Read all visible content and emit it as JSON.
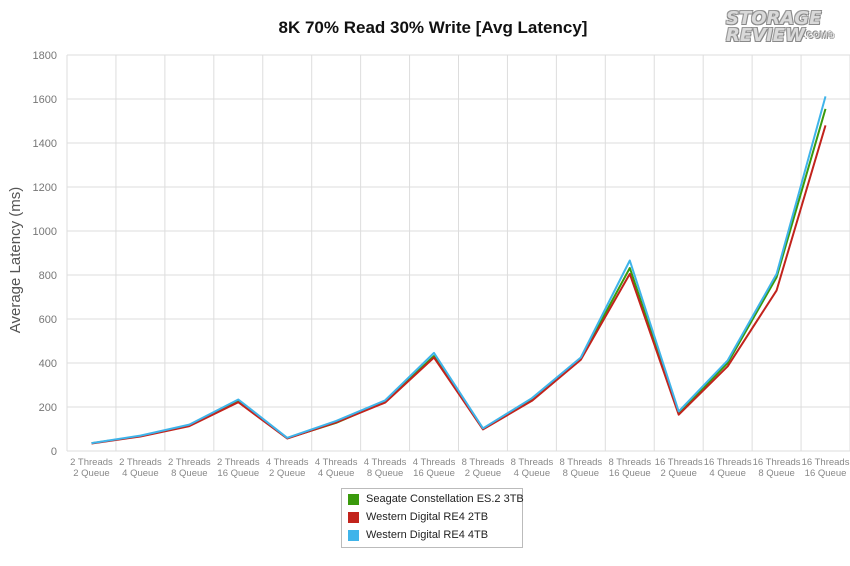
{
  "chart_data": {
    "type": "line",
    "title": "8K 70% Read 30% Write [Avg Latency]",
    "ylabel": "Average Latency (ms)",
    "xlabel": "",
    "ylim": [
      0,
      1800
    ],
    "yticks": [
      0,
      200,
      400,
      600,
      800,
      1000,
      1200,
      1400,
      1600,
      1800
    ],
    "grid": true,
    "legend_position": "bottom",
    "categories": [
      [
        "2 Threads",
        "2 Queue"
      ],
      [
        "2 Threads",
        "4 Queue"
      ],
      [
        "2 Threads",
        "8 Queue"
      ],
      [
        "2 Threads",
        "16 Queue"
      ],
      [
        "4 Threads",
        "2 Queue"
      ],
      [
        "4 Threads",
        "4 Queue"
      ],
      [
        "4 Threads",
        "8 Queue"
      ],
      [
        "4 Threads",
        "16 Queue"
      ],
      [
        "8 Threads",
        "2 Queue"
      ],
      [
        "8 Threads",
        "4 Queue"
      ],
      [
        "8 Threads",
        "8 Queue"
      ],
      [
        "8 Threads",
        "16 Queue"
      ],
      [
        "16 Threads",
        "2 Queue"
      ],
      [
        "16 Threads",
        "4 Queue"
      ],
      [
        "16 Threads",
        "8 Queue"
      ],
      [
        "16 Threads",
        "16 Queue"
      ]
    ],
    "series": [
      {
        "name": "Seagate Constellation ES.2 3TB",
        "color": "#3a9a0c",
        "values": [
          35,
          68,
          117,
          228,
          58,
          128,
          224,
          432,
          100,
          232,
          420,
          832,
          170,
          400,
          790,
          1555
        ]
      },
      {
        "name": "Western Digital RE4 2TB",
        "color": "#c2231c",
        "values": [
          34,
          66,
          113,
          222,
          57,
          130,
          220,
          425,
          98,
          228,
          415,
          805,
          165,
          385,
          730,
          1480
        ]
      },
      {
        "name": "Western Digital RE4 4TB",
        "color": "#3fb4ea",
        "values": [
          36,
          70,
          120,
          234,
          60,
          137,
          230,
          446,
          103,
          240,
          425,
          866,
          180,
          412,
          805,
          1612
        ]
      }
    ]
  },
  "logo": {
    "line1": "STORAGE",
    "line2": "REVIEW",
    "suffix": ".COM®"
  }
}
